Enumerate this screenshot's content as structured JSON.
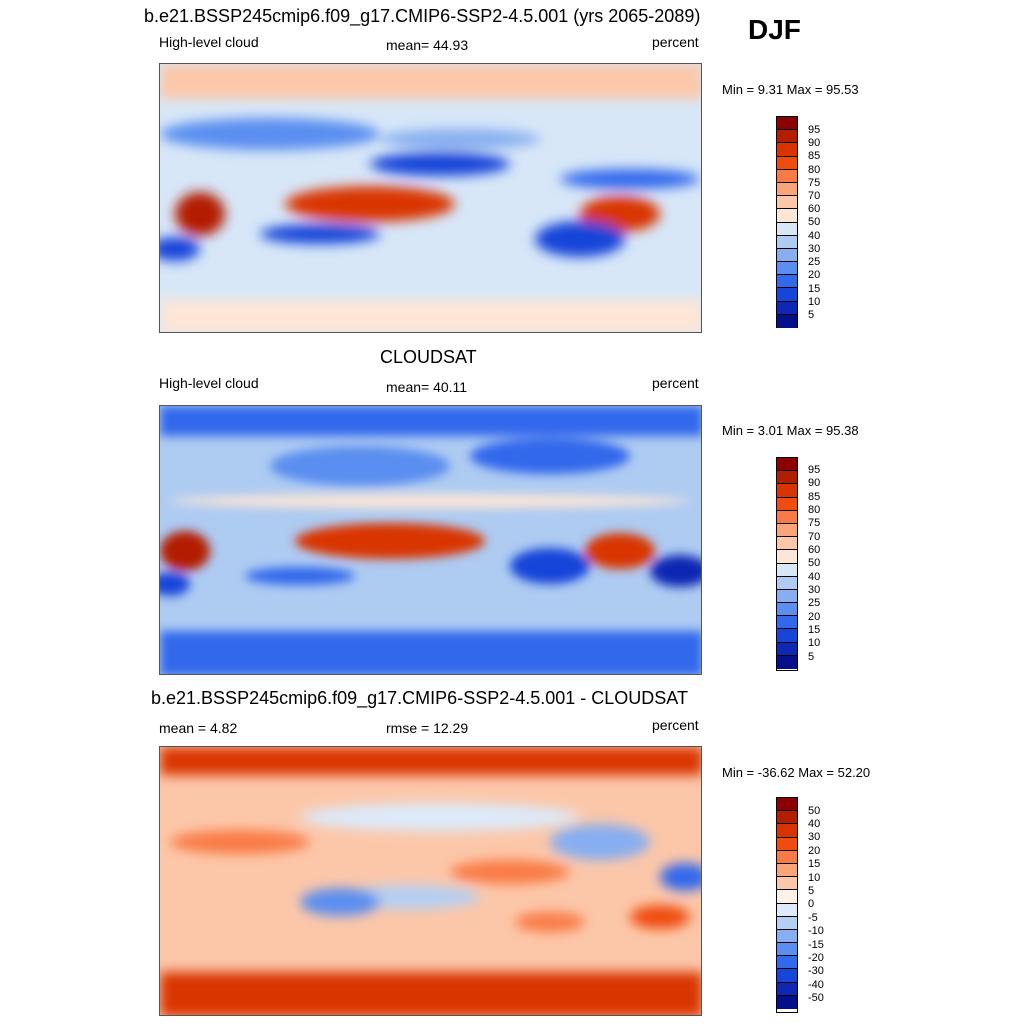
{
  "header": {
    "title": "b.e21.BSSP245cmip6.f09_g17.CMIP6-SSP2-4.5.001 (yrs 2065-2089)",
    "season": "DJF"
  },
  "panels": [
    {
      "title": "b.e21.BSSP245cmip6.f09_g17.CMIP6-SSP2-4.5.001 (yrs 2065-2089)",
      "left_label": "High-level cloud",
      "center_label": "mean=  44.93",
      "right_label": "percent",
      "minmax": "Min =   9.31 Max =  95.53",
      "legend_labels": [
        "95",
        "90",
        "85",
        "80",
        "75",
        "70",
        "60",
        "50",
        "40",
        "30",
        "25",
        "20",
        "15",
        "10",
        "5"
      ],
      "legend_colors": [
        "#8b0000",
        "#b31d00",
        "#d93400",
        "#f04c0f",
        "#f97a45",
        "#fba47a",
        "#fcc7a9",
        "#fde6d6",
        "#d7e7f8",
        "#aecbf2",
        "#86aef0",
        "#5a8ef0",
        "#3268ec",
        "#1744d9",
        "#0e27b4",
        "#040f8a"
      ]
    },
    {
      "title": "CLOUDSAT",
      "left_label": "High-level cloud",
      "center_label": "mean=  40.11",
      "right_label": "percent",
      "minmax": "Min =   3.01 Max =  95.38",
      "legend_labels": [
        "95",
        "90",
        "85",
        "80",
        "75",
        "70",
        "60",
        "50",
        "40",
        "30",
        "25",
        "20",
        "15",
        "10",
        "5"
      ],
      "legend_colors": [
        "#8b0000",
        "#b31d00",
        "#d93400",
        "#f04c0f",
        "#f97a45",
        "#fba47a",
        "#fcc7a9",
        "#fde6d6",
        "#d7e7f8",
        "#aecbf2",
        "#86aef0",
        "#5a8ef0",
        "#3268ec",
        "#1744d9",
        "#0e27b4",
        "#040f8a"
      ]
    },
    {
      "title": "b.e21.BSSP245cmip6.f09_g17.CMIP6-SSP2-4.5.001 - CLOUDSAT",
      "left_label": "mean =   4.82",
      "center_label": "rmse =  12.29",
      "right_label": "percent",
      "minmax": "Min = -36.62 Max =  52.20",
      "legend_labels": [
        "50",
        "40",
        "30",
        "20",
        "15",
        "10",
        "5",
        "0",
        "-5",
        "-10",
        "-15",
        "-20",
        "-30",
        "-40",
        "-50"
      ],
      "legend_colors": [
        "#8b0000",
        "#b31d00",
        "#d93400",
        "#f04c0f",
        "#f97a45",
        "#fba47a",
        "#fcc7a9",
        "#fff1e6",
        "#dceafa",
        "#b4cff4",
        "#86aef0",
        "#5a8ef0",
        "#3268ec",
        "#1744d9",
        "#0e27b4",
        "#040f8a"
      ]
    }
  ]
}
